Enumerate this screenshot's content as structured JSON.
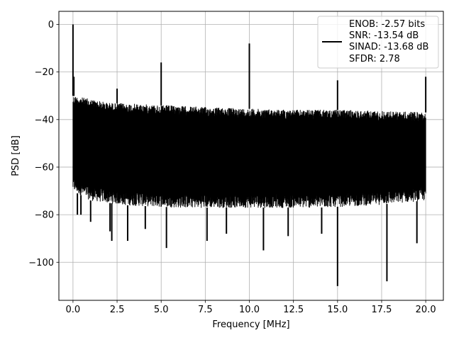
{
  "chart_data": {
    "type": "line",
    "title": "",
    "xlabel": "Frequency [MHz]",
    "ylabel": "PSD [dB]",
    "xlim": [
      -0.8,
      21.0
    ],
    "ylim": [
      -116,
      5.5
    ],
    "grid": true,
    "legend_position": "top-right",
    "x_ticks": [
      0.0,
      2.5,
      5.0,
      7.5,
      10.0,
      12.5,
      15.0,
      17.5,
      20.0
    ],
    "x_tick_labels": [
      "0.0",
      "2.5",
      "5.0",
      "7.5",
      "10.0",
      "12.5",
      "15.0",
      "17.5",
      "20.0"
    ],
    "y_ticks": [
      0,
      -20,
      -40,
      -60,
      -80,
      -100
    ],
    "y_tick_labels": [
      "0",
      "−20",
      "−40",
      "−60",
      "−80",
      "−100"
    ],
    "line_color": "#000000",
    "legend_entries": [
      "ENOB: -2.57 bits",
      "SNR: -13.54 dB",
      "SINAD: -13.68 dB",
      "SFDR: 2.78"
    ],
    "series": [
      {
        "name": "ENOB: -2.57 bits SNR: -13.54 dB SINAD: -13.68 dB SFDR: 2.78",
        "noise_floor_max": [
          [
            0.0,
            -30
          ],
          [
            2.0,
            -33
          ],
          [
            5.0,
            -34
          ],
          [
            8.0,
            -35
          ],
          [
            10.0,
            -35.5
          ],
          [
            12.5,
            -36
          ],
          [
            15.0,
            -36
          ],
          [
            17.5,
            -36.5
          ],
          [
            20.0,
            -37
          ]
        ],
        "noise_floor_min": [
          [
            0.0,
            -70
          ],
          [
            1.0,
            -74
          ],
          [
            3.0,
            -76
          ],
          [
            6.0,
            -77
          ],
          [
            10.0,
            -77
          ],
          [
            14.0,
            -77
          ],
          [
            17.0,
            -76
          ],
          [
            20.0,
            -74
          ]
        ],
        "peaks": [
          {
            "x": 0.0,
            "y": 0
          },
          {
            "x": 0.05,
            "y": -22
          },
          {
            "x": 2.5,
            "y": -27
          },
          {
            "x": 5.0,
            "y": -16
          },
          {
            "x": 10.0,
            "y": -8
          },
          {
            "x": 15.0,
            "y": -23.5
          },
          {
            "x": 20.0,
            "y": -22
          }
        ],
        "dips": [
          {
            "x": 0.25,
            "y": -80
          },
          {
            "x": 0.45,
            "y": -80
          },
          {
            "x": 1.0,
            "y": -83
          },
          {
            "x": 2.1,
            "y": -87
          },
          {
            "x": 2.2,
            "y": -91
          },
          {
            "x": 3.1,
            "y": -91
          },
          {
            "x": 4.1,
            "y": -86
          },
          {
            "x": 5.3,
            "y": -94
          },
          {
            "x": 7.6,
            "y": -91
          },
          {
            "x": 8.7,
            "y": -88
          },
          {
            "x": 10.8,
            "y": -95
          },
          {
            "x": 12.2,
            "y": -89
          },
          {
            "x": 14.1,
            "y": -88
          },
          {
            "x": 15.0,
            "y": -110
          },
          {
            "x": 17.8,
            "y": -108
          },
          {
            "x": 19.5,
            "y": -92
          }
        ]
      }
    ]
  }
}
